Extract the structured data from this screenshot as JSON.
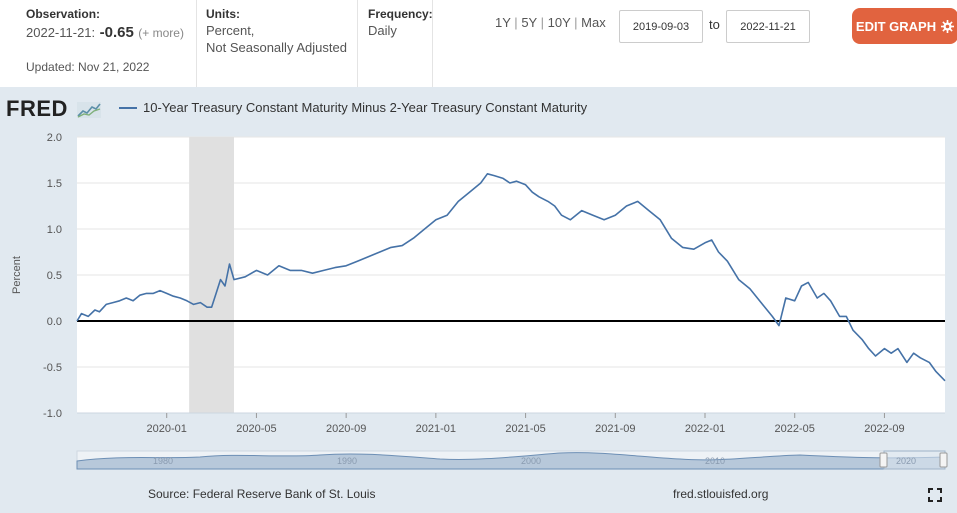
{
  "header": {
    "observation_label": "Observation:",
    "observation_date": "2022-11-21:",
    "observation_value": "-0.65",
    "observation_more": "(+ more)",
    "updated": "Updated: Nov 21, 2022",
    "units_label": "Units:",
    "units_line1": "Percent,",
    "units_line2": "Not Seasonally Adjusted",
    "frequency_label": "Frequency:",
    "frequency_value": "Daily",
    "ranges": [
      "1Y",
      "5Y",
      "10Y",
      "Max"
    ],
    "date_from": "2019-09-03",
    "date_to_label": "to",
    "date_to": "2022-11-21",
    "edit_button": "EDIT GRAPH"
  },
  "logo_text": "FRED",
  "series_title": "10-Year Treasury Constant Maturity Minus 2-Year Treasury Constant Maturity",
  "footer": {
    "source": "Source: Federal Reserve Bank of St. Louis",
    "site": "fred.stlouisfed.org"
  },
  "colors": {
    "line": "#4572a7",
    "recession": "#e0e0e0",
    "edit_button": "#e1633f",
    "background": "#e1e9f0"
  },
  "chart_data": {
    "type": "line",
    "title": "10-Year Treasury Constant Maturity Minus 2-Year Treasury Constant Maturity",
    "xlabel": "",
    "ylabel": "Percent",
    "ylim": [
      -1.0,
      2.0
    ],
    "yticks": [
      "2.0",
      "1.5",
      "1.0",
      "0.5",
      "0.0",
      "-0.5",
      "-1.0"
    ],
    "ytick_values": [
      2.0,
      1.5,
      1.0,
      0.5,
      0.0,
      -0.5,
      -1.0
    ],
    "xticks": [
      "2020-01",
      "2020-05",
      "2020-09",
      "2021-01",
      "2021-05",
      "2021-09",
      "2022-01",
      "2022-05",
      "2022-09"
    ],
    "xtick_months": [
      4,
      8,
      12,
      16,
      20,
      24,
      28,
      32,
      36
    ],
    "x_unit": "months since 2019-09-01",
    "xlim": [
      0,
      38.7
    ],
    "recession": {
      "start": 5.0,
      "end": 7.0,
      "label": "2020-02 to 2020-04"
    },
    "zero_line": true,
    "navigator_labels": [
      "1980",
      "1990",
      "2000",
      "2010",
      "2020"
    ],
    "series": [
      {
        "name": "10-Year Treasury Constant Maturity Minus 2-Year Treasury Constant Maturity",
        "x": [
          0,
          0.2,
          0.5,
          0.8,
          1.0,
          1.3,
          1.6,
          1.9,
          2.2,
          2.5,
          2.8,
          3.1,
          3.4,
          3.7,
          4.0,
          4.3,
          4.6,
          4.9,
          5.2,
          5.5,
          5.8,
          6.0,
          6.2,
          6.4,
          6.6,
          6.8,
          7.0,
          7.5,
          8.0,
          8.5,
          9.0,
          9.5,
          10.0,
          10.5,
          11.0,
          11.5,
          12.0,
          12.5,
          13.0,
          13.5,
          14.0,
          14.5,
          15.0,
          15.5,
          16.0,
          16.5,
          17.0,
          17.5,
          18.0,
          18.3,
          18.6,
          19.0,
          19.3,
          19.6,
          20.0,
          20.3,
          20.6,
          21.0,
          21.3,
          21.6,
          22.0,
          22.5,
          23.0,
          23.5,
          24.0,
          24.5,
          25.0,
          25.5,
          26.0,
          26.5,
          27.0,
          27.5,
          28.0,
          28.3,
          28.6,
          29.0,
          29.5,
          30.0,
          30.5,
          31.0,
          31.3,
          31.6,
          32.0,
          32.3,
          32.6,
          33.0,
          33.3,
          33.6,
          34.0,
          34.3,
          34.6,
          35.0,
          35.3,
          35.6,
          36.0,
          36.3,
          36.6,
          37.0,
          37.3,
          37.6,
          38.0,
          38.3,
          38.5,
          38.7
        ],
        "values": [
          0.0,
          0.08,
          0.05,
          0.12,
          0.1,
          0.18,
          0.2,
          0.22,
          0.25,
          0.22,
          0.28,
          0.3,
          0.3,
          0.33,
          0.3,
          0.27,
          0.25,
          0.22,
          0.18,
          0.2,
          0.15,
          0.15,
          0.3,
          0.45,
          0.38,
          0.62,
          0.45,
          0.48,
          0.55,
          0.5,
          0.6,
          0.55,
          0.55,
          0.52,
          0.55,
          0.58,
          0.6,
          0.65,
          0.7,
          0.75,
          0.8,
          0.82,
          0.9,
          1.0,
          1.1,
          1.15,
          1.3,
          1.4,
          1.5,
          1.6,
          1.58,
          1.55,
          1.5,
          1.52,
          1.48,
          1.4,
          1.35,
          1.3,
          1.25,
          1.15,
          1.1,
          1.2,
          1.15,
          1.1,
          1.15,
          1.25,
          1.3,
          1.2,
          1.1,
          0.9,
          0.8,
          0.78,
          0.85,
          0.88,
          0.75,
          0.65,
          0.45,
          0.35,
          0.2,
          0.05,
          -0.05,
          0.25,
          0.22,
          0.38,
          0.42,
          0.25,
          0.3,
          0.22,
          0.05,
          0.05,
          -0.1,
          -0.2,
          -0.3,
          -0.38,
          -0.3,
          -0.35,
          -0.3,
          -0.45,
          -0.35,
          -0.4,
          -0.45,
          -0.55,
          -0.6,
          -0.65
        ]
      }
    ]
  }
}
